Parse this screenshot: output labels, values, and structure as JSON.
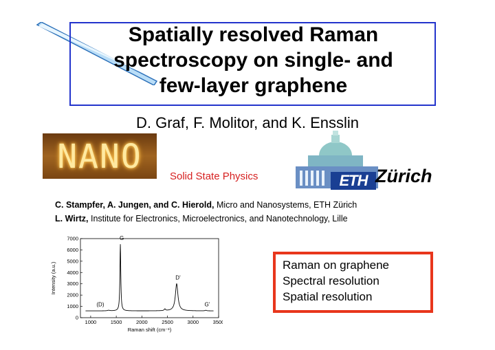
{
  "title": "Spatially resolved Raman spectroscopy on single- and few-layer graphene",
  "title_lines": [
    "Spatially resolved Raman",
    "spectroscopy on single- and",
    "few-layer graphene"
  ],
  "authors": "D. Graf, F. Molitor, and K. Ensslin",
  "nano_logo_text": "NANO",
  "affiliation": "Solid State Physics",
  "eth_logo": {
    "abbrev": "ETH",
    "city": "Zürich"
  },
  "collaborators": [
    {
      "names": "C. Stampfer, A. Jungen, and C. Hierold,",
      "institution": "Micro and Nanosystems, ETH Zürich"
    },
    {
      "names": "L. Wirtz,",
      "institution": "Institute for Electronics, Microelectronics, and Nanotechnology, Lille"
    }
  ],
  "topics": [
    "Raman on graphene",
    "Spectral resolution",
    "Spatial resolution"
  ],
  "colors": {
    "title_border": "#2233cc",
    "topics_border": "#e8361c",
    "affiliation": "#d62020",
    "eth_blue": "#1a3f93"
  },
  "chart_data": {
    "type": "line",
    "xlabel": "Raman shift (cm⁻¹)",
    "ylabel": "Intensity (a.u.)",
    "xlim": [
      800,
      3500
    ],
    "ylim": [
      0,
      7000
    ],
    "xticks": [
      1000,
      1500,
      2000,
      2500,
      3000,
      3500
    ],
    "yticks": [
      0,
      1000,
      2000,
      3000,
      4000,
      5000,
      6000,
      7000
    ],
    "baseline": 600,
    "peaks": [
      {
        "label": "(D)",
        "x": 1350,
        "y": 650,
        "width": 25
      },
      {
        "label": "G",
        "x": 1580,
        "y": 6500,
        "width": 10
      },
      {
        "label": "D'",
        "x": 2680,
        "y": 3000,
        "width": 30
      },
      {
        "label": "G'",
        "x": 3250,
        "y": 650,
        "width": 18
      }
    ],
    "extra_features": [
      {
        "x": 2450,
        "y": 750,
        "width": 15
      }
    ]
  }
}
